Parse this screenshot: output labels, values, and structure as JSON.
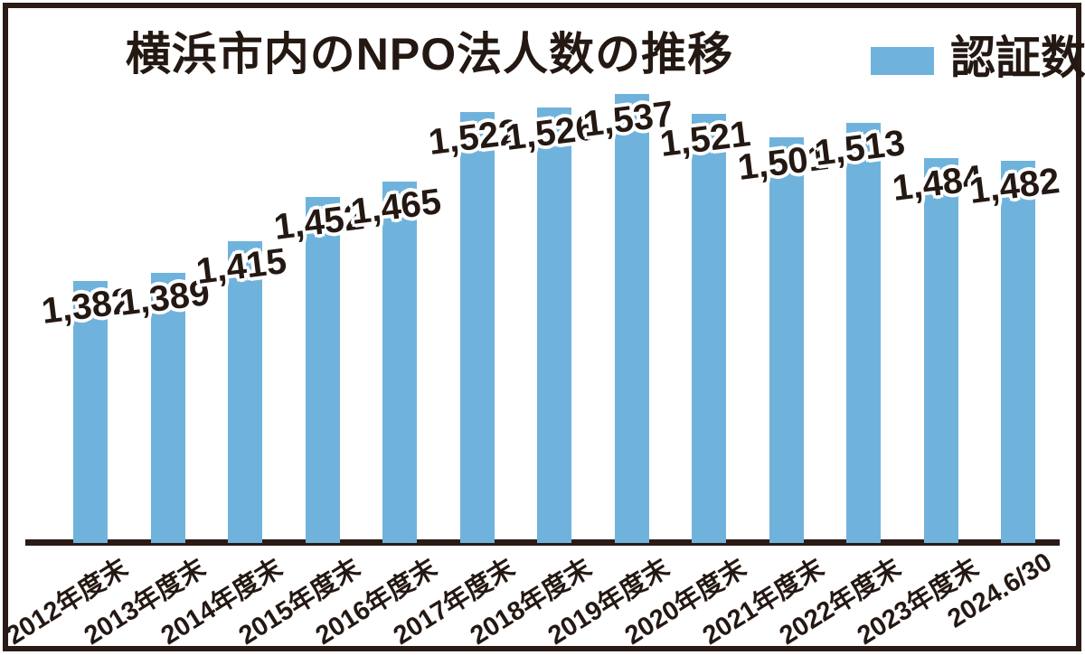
{
  "title": "横浜市内のNPO法人数の推移",
  "legend": {
    "label": "認証数",
    "swatch_color": "#6fb3dd"
  },
  "colors": {
    "bar": "#6fb3dd",
    "text": "#241813",
    "axis": "#2a1b16",
    "background": "#ffffff"
  },
  "chart_data": {
    "type": "bar",
    "title": "横浜市内のNPO法人数の推移",
    "series_name": "認証数",
    "categories": [
      "2012年度末",
      "2013年度末",
      "2014年度末",
      "2015年度末",
      "2016年度末",
      "2017年度末",
      "2018年度末",
      "2019年度末",
      "2020年度末",
      "2021年度末",
      "2022年度末",
      "2023年度末",
      "2024.6/30"
    ],
    "values": [
      1382,
      1389,
      1415,
      1452,
      1465,
      1522,
      1526,
      1537,
      1521,
      1501,
      1513,
      1484,
      1482
    ],
    "value_labels": [
      "1,382",
      "1,389",
      "1,415",
      "1,452",
      "1,465",
      "1,522",
      "1,526",
      "1,537",
      "1,521",
      "1,501",
      "1,513",
      "1,484",
      "1,482"
    ],
    "xlabel": "",
    "ylabel": "",
    "ylim": [
      1168,
      1560
    ],
    "grid": false,
    "legend_position": "top-right",
    "x_tick_rotation_deg": 32,
    "value_label_rotation_deg": 7,
    "bar_color": "#6fb3dd"
  }
}
